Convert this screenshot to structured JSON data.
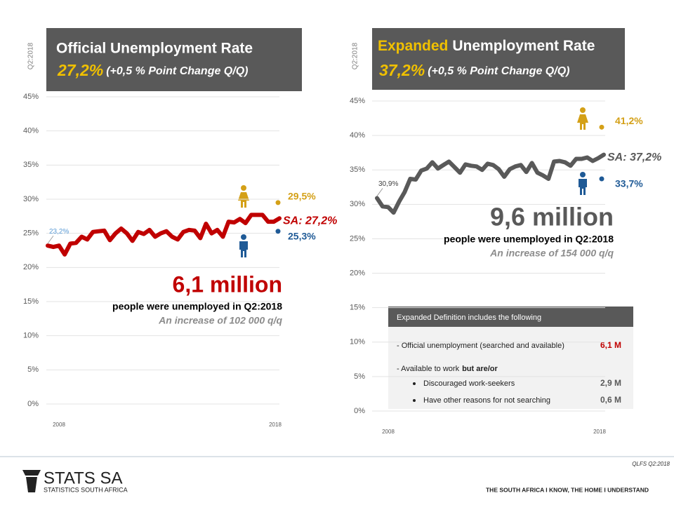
{
  "chart_data": [
    {
      "type": "line",
      "side_label": "Q2:2018",
      "title": "Official Unemployment Rate",
      "headline": "27,2%",
      "headline_note": "(+0,5 %  Point Change Q/Q)",
      "categories": [
        "2008",
        null,
        null,
        null,
        null,
        null,
        null,
        null,
        null,
        null,
        null,
        null,
        null,
        null,
        null,
        null,
        null,
        null,
        null,
        null,
        null,
        null,
        null,
        null,
        null,
        null,
        null,
        null,
        null,
        null,
        null,
        null,
        null,
        null,
        null,
        null,
        null,
        null,
        null,
        null,
        null,
        "2018"
      ],
      "series": [
        {
          "color": "#c00000",
          "values": [
            23.2,
            23.0,
            23.2,
            21.9,
            23.5,
            23.6,
            24.5,
            24.1,
            25.2,
            25.3,
            25.4,
            24.0,
            25.0,
            25.7,
            25.0,
            23.9,
            25.2,
            24.9,
            25.5,
            24.5,
            25.0,
            25.3,
            24.5,
            24.1,
            25.2,
            25.5,
            25.4,
            24.3,
            26.4,
            25.0,
            25.5,
            24.5,
            26.7,
            26.6,
            27.1,
            26.5,
            27.7,
            27.7,
            27.7,
            26.7,
            26.7,
            27.2
          ],
          "value_labels": [
            "23,2%",
            null,
            null,
            null,
            null,
            null,
            null,
            null,
            null,
            null,
            null,
            null,
            null,
            null,
            null,
            null,
            null,
            null,
            null,
            null,
            null,
            null,
            null,
            null,
            null,
            null,
            null,
            null,
            null,
            null,
            null,
            null,
            null,
            null,
            null,
            null,
            null,
            null,
            null,
            null,
            null,
            "SA: 27,2%"
          ]
        }
      ],
      "markers": [
        {
          "value": 29.5,
          "label": "29,5%",
          "color": "#d4a017"
        },
        {
          "value": 25.3,
          "label": "25,3%",
          "color": "#1f5a96"
        }
      ],
      "ylim": [
        0,
        45
      ],
      "yticks": [
        {
          "value": 0,
          "label": "0%"
        },
        {
          "value": 5,
          "label": "5%"
        },
        {
          "value": 10,
          "label": "10%"
        },
        {
          "value": 15,
          "label": "15%"
        },
        {
          "value": 20,
          "label": "20%"
        },
        {
          "value": 25,
          "label": "25%"
        },
        {
          "value": 30,
          "label": "30%"
        },
        {
          "value": 35,
          "label": "35%"
        },
        {
          "value": 40,
          "label": "40%"
        },
        {
          "value": 45,
          "label": "45%"
        }
      ],
      "grid": true,
      "big_number": "6,1 million",
      "caption": "people were unemployed in Q2:2018",
      "note": "An increase of 102 000 q/q"
    },
    {
      "type": "line",
      "side_label": "Q2:2018",
      "title_highlight": "Expanded",
      "title": "Unemployment Rate",
      "headline": "37,2%",
      "headline_note": "(+0,5 % Point Change Q/Q)",
      "categories": [
        "2008",
        null,
        null,
        null,
        null,
        null,
        null,
        null,
        null,
        null,
        null,
        null,
        null,
        null,
        null,
        null,
        null,
        null,
        null,
        null,
        null,
        null,
        null,
        null,
        null,
        null,
        null,
        null,
        null,
        null,
        null,
        null,
        null,
        null,
        null,
        null,
        null,
        null,
        null,
        null,
        null,
        "2018"
      ],
      "series": [
        {
          "color": "#595959",
          "values": [
            30.9,
            29.7,
            29.6,
            28.8,
            30.4,
            31.8,
            33.7,
            33.6,
            34.9,
            35.2,
            36.1,
            35.2,
            35.7,
            36.2,
            35.4,
            34.6,
            35.8,
            35.6,
            35.5,
            35.0,
            35.9,
            35.7,
            35.1,
            34.0,
            35.1,
            35.5,
            35.7,
            34.7,
            36.0,
            34.6,
            34.2,
            33.7,
            36.2,
            36.3,
            36.1,
            35.6,
            36.6,
            36.6,
            36.8,
            36.3,
            36.7,
            37.2
          ],
          "value_labels": [
            "30,9%",
            null,
            null,
            null,
            null,
            null,
            null,
            null,
            null,
            null,
            null,
            null,
            null,
            null,
            null,
            null,
            null,
            null,
            null,
            null,
            null,
            null,
            null,
            null,
            null,
            null,
            null,
            null,
            null,
            null,
            null,
            null,
            null,
            null,
            null,
            null,
            null,
            null,
            null,
            null,
            null,
            "SA: 37,2%"
          ]
        }
      ],
      "markers": [
        {
          "value": 41.2,
          "label": "41,2%",
          "color": "#d4a017"
        },
        {
          "value": 33.7,
          "label": "33,7%",
          "color": "#1f5a96"
        }
      ],
      "ylim": [
        0,
        45
      ],
      "yticks": [
        {
          "value": 0,
          "label": "0%"
        },
        {
          "value": 5,
          "label": "5%"
        },
        {
          "value": 10,
          "label": "10%"
        },
        {
          "value": 15,
          "label": "15%"
        },
        {
          "value": 20,
          "label": "20%"
        },
        {
          "value": 25,
          "label": "25%"
        },
        {
          "value": 30,
          "label": "30%"
        },
        {
          "value": 35,
          "label": "35%"
        },
        {
          "value": 40,
          "label": "40%"
        },
        {
          "value": 45,
          "label": "45%"
        }
      ],
      "grid": true,
      "big_number": "9,6 million",
      "caption": "people were unemployed in Q2:2018",
      "note": "An increase of 154 000 q/q"
    }
  ],
  "definition_box": {
    "header": "Expanded  Definition includes  the following",
    "rows": [
      {
        "text": "- Official unemployment (searched and available)",
        "value": "6,1 M"
      },
      {
        "text": "- Available to work",
        "emphasis": "but are/or"
      },
      {
        "bullet": "Discouraged work-seekers",
        "value": "2,9 M"
      },
      {
        "bullet": "Have other reasons for not searching",
        "value": "0,6 M"
      }
    ]
  },
  "footer": {
    "source": "QLFS Q2:2018",
    "brand": "STATS SA",
    "brand_sub": "STATISTICS SOUTH AFRICA",
    "tagline": "THE SOUTH AFRICA I KNOW, THE HOME I UNDERSTAND"
  }
}
